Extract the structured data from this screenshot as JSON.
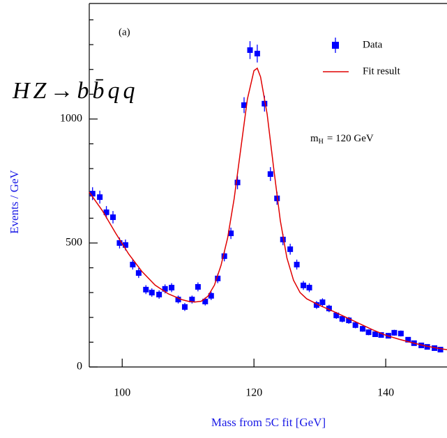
{
  "chart_data": {
    "type": "scatter",
    "annotation": "HZ→bb̄qq",
    "panel_label": "(a)",
    "mass_label": {
      "symbol": "m",
      "subscript": "H",
      "text": "= 120 GeV"
    },
    "xlabel": "Mass from 5C fit [GeV]",
    "ylabel": "Events / GeV",
    "xlim": [
      95,
      149.3
    ],
    "xticks": [
      100,
      120,
      140
    ],
    "ylim": [
      0,
      1466
    ],
    "yticks": [
      0,
      500,
      1000
    ],
    "yticks_minor": [
      100,
      200,
      300,
      400,
      600,
      700,
      800,
      900,
      1100,
      1200,
      1300,
      1400
    ],
    "series": [
      {
        "name": "Data",
        "type": "errorbar",
        "color": "#0000ff",
        "x": [
          95.5,
          96.6,
          97.6,
          98.6,
          99.6,
          100.5,
          101.6,
          102.5,
          103.6,
          104.5,
          105.6,
          106.5,
          107.5,
          108.5,
          109.5,
          110.6,
          111.5,
          112.6,
          113.5,
          114.5,
          115.5,
          116.5,
          117.5,
          118.5,
          119.4,
          120.5,
          121.6,
          122.5,
          123.5,
          124.4,
          125.5,
          126.5,
          127.5,
          128.4,
          129.5,
          130.4,
          131.4,
          132.5,
          133.4,
          134.4,
          135.4,
          136.5,
          137.4,
          138.4,
          139.3,
          140.4,
          141.3,
          142.3,
          143.4,
          144.3,
          145.4,
          146.3,
          147.4,
          148.3
        ],
        "values": [
          699,
          685,
          624,
          604,
          500,
          492,
          413,
          379,
          312,
          300,
          292,
          315,
          320,
          272,
          242,
          272,
          323,
          264,
          287,
          357,
          447,
          539,
          744,
          1056,
          1278,
          1264,
          1062,
          778,
          680,
          514,
          475,
          413,
          329,
          320,
          250,
          261,
          236,
          208,
          194,
          188,
          169,
          154,
          140,
          132,
          129,
          126,
          138,
          135,
          110,
          96,
          87,
          81,
          76,
          70
        ],
        "errors": [
          26,
          26,
          25,
          25,
          22,
          22,
          20,
          20,
          18,
          17,
          17,
          18,
          18,
          16,
          16,
          16,
          18,
          16,
          17,
          19,
          21,
          23,
          27,
          32,
          36,
          36,
          32,
          28,
          26,
          23,
          22,
          20,
          18,
          18,
          16,
          16,
          15,
          14,
          14,
          14,
          13,
          12,
          12,
          11,
          11,
          11,
          12,
          12,
          10,
          10,
          9,
          9,
          9,
          8
        ]
      },
      {
        "name": "Fit result",
        "type": "line",
        "color": "#e00000",
        "x": [
          95,
          97,
          99,
          101,
          103,
          105,
          107,
          109,
          110,
          111,
          112,
          113,
          114,
          115,
          116,
          117,
          118,
          119,
          120,
          120.5,
          121,
          122,
          123,
          124,
          125,
          126,
          127,
          128,
          130,
          132,
          134,
          136,
          138,
          140,
          142,
          144,
          146,
          148,
          149.3
        ],
        "values": [
          705,
          630,
          540,
          455,
          385,
          330,
          295,
          272,
          265,
          262,
          265,
          285,
          330,
          410,
          520,
          680,
          880,
          1080,
          1195,
          1205,
          1170,
          1020,
          800,
          590,
          440,
          350,
          300,
          275,
          248,
          225,
          200,
          175,
          150,
          128,
          112,
          98,
          85,
          75,
          70
        ]
      }
    ]
  }
}
